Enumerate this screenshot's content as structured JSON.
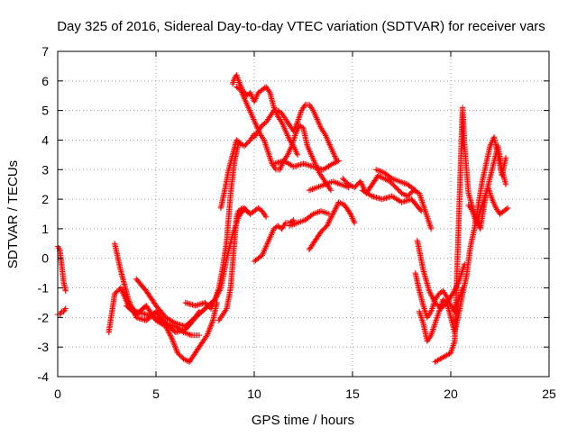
{
  "chart_data": {
    "type": "scatter",
    "title": "Day 325 of 2016, Sidereal Day-to-day VTEC variation (SDTVAR) for receiver vars",
    "xlabel": "GPS time / hours",
    "ylabel": "SDTVAR / TECUs",
    "xlim": [
      0,
      25
    ],
    "ylim": [
      -4,
      7
    ],
    "x_ticks": [
      "0",
      "5",
      "10",
      "15",
      "20",
      "25"
    ],
    "y_ticks": [
      "-4",
      "-3",
      "-2",
      "-1",
      "0",
      "1",
      "2",
      "3",
      "4",
      "5",
      "6",
      "7"
    ],
    "grid": true,
    "legend": "none",
    "marker": "+",
    "color": "#ff0000",
    "series": [
      {
        "name": "s1",
        "x": [
          0.0,
          0.1,
          0.2,
          0.3,
          0.4
        ],
        "y": [
          0.4,
          0.3,
          -0.2,
          -0.8,
          -1.1
        ]
      },
      {
        "name": "s2",
        "x": [
          0.0,
          0.1,
          0.2,
          0.3,
          0.4
        ],
        "y": [
          -1.9,
          -1.9,
          -1.8,
          -1.8,
          -1.7
        ]
      },
      {
        "name": "s3",
        "x": [
          2.6,
          2.9,
          3.2,
          3.6,
          4.0,
          4.5,
          5.0,
          5.5,
          6.0,
          6.4,
          6.8,
          7.2
        ],
        "y": [
          -2.5,
          -1.2,
          -1.0,
          -1.6,
          -1.8,
          -1.9,
          -2.0,
          -2.2,
          -2.3,
          -2.5,
          -2.6,
          -2.6
        ]
      },
      {
        "name": "s4",
        "x": [
          2.9,
          3.2,
          3.6,
          4.0,
          4.5,
          5.0,
          5.5,
          6.0,
          6.5,
          6.9,
          7.2
        ],
        "y": [
          0.5,
          -0.4,
          -1.4,
          -2.0,
          -2.1,
          -1.8,
          -2.2,
          -2.5,
          -2.4,
          -2.1,
          -1.8
        ]
      },
      {
        "name": "s5",
        "x": [
          3.5,
          4.0,
          4.5,
          5.0,
          5.5,
          5.8,
          6.1,
          6.4,
          6.7,
          7.0,
          7.3,
          7.6,
          7.9,
          8.1
        ],
        "y": [
          -1.6,
          -1.9,
          -1.6,
          -2.1,
          -2.3,
          -2.7,
          -3.2,
          -3.4,
          -3.5,
          -3.2,
          -2.9,
          -2.6,
          -2.1,
          -1.5
        ]
      },
      {
        "name": "s6",
        "x": [
          4.0,
          4.5,
          5.0,
          5.5,
          6.0,
          6.5,
          7.0,
          7.5,
          8.0,
          8.3,
          8.6,
          8.9,
          9.2,
          9.5,
          9.8
        ],
        "y": [
          -0.7,
          -1.1,
          -1.6,
          -2.0,
          -2.2,
          -2.3,
          -2.0,
          -1.7,
          -1.4,
          -1.0,
          0.0,
          0.8,
          1.4,
          1.7,
          1.5
        ]
      },
      {
        "name": "s7",
        "x": [
          6.5,
          7.0,
          7.5,
          7.8,
          8.0,
          8.2,
          8.4,
          8.6,
          8.8,
          9.0,
          9.2,
          9.5,
          9.8,
          10.0
        ],
        "y": [
          -1.5,
          -1.6,
          -1.5,
          -1.7,
          -1.4,
          -1.0,
          -0.3,
          0.6,
          2.2,
          3.3,
          3.9,
          3.8,
          4.0,
          4.2
        ]
      },
      {
        "name": "s8",
        "x": [
          8.2,
          8.4,
          8.6,
          8.8,
          9.0,
          9.1,
          9.2,
          9.4,
          9.6,
          9.8,
          10.0,
          10.2,
          10.4,
          10.6
        ],
        "y": [
          -2.1,
          -1.9,
          -1.7,
          -1.0,
          0.6,
          1.4,
          1.6,
          1.7,
          1.6,
          1.5,
          1.6,
          1.7,
          1.6,
          1.4
        ]
      },
      {
        "name": "s9",
        "x": [
          8.3,
          8.5,
          8.7,
          8.9,
          9.1,
          9.3
        ],
        "y": [
          1.7,
          2.3,
          3.0,
          3.5,
          4.0,
          3.9
        ]
      },
      {
        "name": "s10",
        "x": [
          8.9,
          9.0,
          9.1,
          9.2,
          9.4,
          9.6,
          9.8,
          10.0,
          10.2,
          10.4,
          10.6,
          10.8,
          11.0,
          11.2,
          11.4,
          11.6,
          11.8,
          12.0,
          12.2
        ],
        "y": [
          5.9,
          6.1,
          6.2,
          6.0,
          5.7,
          5.5,
          5.6,
          5.3,
          5.6,
          5.7,
          5.8,
          5.6,
          5.1,
          4.8,
          4.6,
          4.3,
          4.0,
          3.8,
          3.5
        ]
      },
      {
        "name": "s11",
        "x": [
          9.1,
          9.3,
          9.5,
          9.7,
          9.9,
          10.1,
          10.3,
          10.5,
          10.7,
          10.9,
          11.1,
          11.3,
          11.5,
          11.7,
          11.9,
          12.1,
          12.3,
          12.5,
          12.7,
          12.9,
          13.1,
          13.3,
          13.5,
          13.7,
          13.9
        ],
        "y": [
          5.8,
          5.7,
          5.4,
          5.1,
          4.8,
          4.5,
          4.2,
          4.0,
          3.6,
          3.2,
          3.0,
          3.0,
          3.3,
          3.5,
          3.8,
          4.2,
          4.5,
          4.4,
          3.8,
          3.5,
          3.2,
          2.9,
          2.7,
          2.5,
          2.3
        ]
      },
      {
        "name": "s12",
        "x": [
          10.0,
          10.2,
          10.4,
          10.6,
          10.8,
          11.0,
          11.2,
          11.4,
          11.6,
          11.8,
          12.0,
          12.2,
          12.4,
          12.6,
          12.8,
          13.0,
          13.2,
          13.4,
          13.6,
          13.8,
          14.0,
          14.2
        ],
        "y": [
          4.1,
          4.3,
          4.5,
          4.6,
          4.8,
          5.0,
          5.0,
          4.9,
          4.7,
          4.5,
          4.3,
          4.6,
          5.0,
          5.2,
          5.2,
          5.0,
          4.7,
          4.4,
          4.2,
          3.9,
          3.6,
          3.3
        ]
      },
      {
        "name": "s13",
        "x": [
          10.0,
          10.2,
          10.4,
          10.6,
          10.8,
          11.0,
          11.2,
          11.4,
          11.6,
          11.8,
          12.0
        ],
        "y": [
          -0.1,
          0.0,
          0.1,
          0.4,
          0.7,
          1.0,
          1.1,
          1.0,
          1.2,
          1.2,
          1.3
        ]
      },
      {
        "name": "s14",
        "x": [
          11.0,
          11.5,
          12.0,
          12.5,
          13.0,
          13.5,
          14.0,
          14.3
        ],
        "y": [
          3.2,
          3.3,
          3.1,
          3.2,
          3.1,
          3.0,
          3.2,
          3.3
        ]
      },
      {
        "name": "s15",
        "x": [
          11.8,
          12.2,
          12.6,
          13.0,
          13.4,
          13.8
        ],
        "y": [
          1.1,
          1.2,
          1.3,
          1.5,
          1.6,
          1.5
        ]
      },
      {
        "name": "s16",
        "x": [
          12.8,
          13.2,
          13.6,
          14.0,
          14.4,
          14.8
        ],
        "y": [
          2.3,
          2.4,
          2.5,
          2.6,
          2.5,
          2.4
        ]
      },
      {
        "name": "s17",
        "x": [
          12.8,
          13.1,
          13.4,
          13.7,
          14.0,
          14.3,
          14.6,
          14.9,
          15.1
        ],
        "y": [
          0.3,
          0.6,
          0.9,
          1.1,
          1.5,
          1.9,
          1.8,
          1.5,
          1.2
        ]
      },
      {
        "name": "s18",
        "x": [
          14.5,
          14.8,
          15.1,
          15.4,
          15.7,
          16.0,
          16.3,
          16.6,
          16.9,
          17.2,
          17.5,
          17.8,
          18.1,
          18.4,
          18.7,
          19.0
        ],
        "y": [
          2.7,
          2.5,
          2.4,
          2.6,
          2.2,
          2.5,
          2.8,
          2.7,
          2.6,
          2.4,
          2.2,
          2.1,
          2.3,
          2.2,
          1.6,
          1.0
        ]
      },
      {
        "name": "s19",
        "x": [
          15.5,
          16.0,
          16.5,
          17.0,
          17.5,
          18.0,
          18.5
        ],
        "y": [
          2.3,
          2.1,
          2.0,
          2.1,
          1.9,
          2.0,
          1.6
        ]
      },
      {
        "name": "s20",
        "x": [
          16.2,
          16.6,
          17.0,
          17.4,
          17.8,
          18.2
        ],
        "y": [
          3.0,
          2.9,
          2.7,
          2.6,
          2.5,
          2.3
        ]
      },
      {
        "name": "s21",
        "x": [
          18.2,
          18.4,
          18.6,
          18.8,
          19.0,
          19.2,
          19.4,
          19.6,
          19.8,
          20.0,
          20.2,
          20.4,
          20.6
        ],
        "y": [
          -0.5,
          -1.1,
          -1.6,
          -2.0,
          -1.8,
          -1.4,
          -1.2,
          -1.1,
          -1.3,
          -1.6,
          -1.8,
          -1.4,
          -1.0
        ]
      },
      {
        "name": "s22",
        "x": [
          18.3,
          18.6,
          18.9,
          19.2,
          19.5,
          19.8,
          20.1,
          20.4,
          20.7
        ],
        "y": [
          0.6,
          -0.4,
          -1.1,
          -1.5,
          -1.7,
          -1.5,
          -1.2,
          -0.8,
          -0.2
        ]
      },
      {
        "name": "s23",
        "x": [
          18.4,
          18.6,
          18.8,
          19.0,
          19.2,
          19.4,
          19.6,
          19.8,
          20.0,
          20.2,
          20.4,
          20.6,
          20.8
        ],
        "y": [
          -1.8,
          -2.2,
          -2.8,
          -2.6,
          -2.2,
          -1.8,
          -1.4,
          -1.5,
          -2.0,
          -2.5,
          -1.9,
          -1.2,
          -0.6
        ]
      },
      {
        "name": "s24",
        "x": [
          19.2,
          20.0,
          20.2,
          20.6,
          20.7,
          20.9,
          21.2,
          21.5,
          21.8,
          22.1,
          22.4,
          22.6,
          22.8
        ],
        "y": [
          -3.5,
          -3.2,
          -2.8,
          5.1,
          3.8,
          2.2,
          1.5,
          1.0,
          2.2,
          3.0,
          3.8,
          3.0,
          2.5
        ]
      },
      {
        "name": "s25",
        "x": [
          20.8,
          21.0,
          21.2,
          21.4,
          21.6,
          21.8,
          22.0,
          22.2,
          22.4,
          22.6,
          22.8
        ],
        "y": [
          -0.6,
          0.4,
          1.0,
          1.8,
          2.6,
          3.2,
          3.8,
          4.1,
          3.5,
          2.8,
          3.4
        ]
      },
      {
        "name": "s26",
        "x": [
          20.9,
          21.1,
          21.3,
          21.5,
          21.7,
          21.9,
          22.1,
          22.3,
          22.5,
          22.7,
          22.9
        ],
        "y": [
          1.8,
          1.6,
          1.2,
          1.6,
          2.0,
          2.4,
          2.0,
          1.7,
          1.5,
          1.6,
          1.7
        ]
      }
    ]
  }
}
